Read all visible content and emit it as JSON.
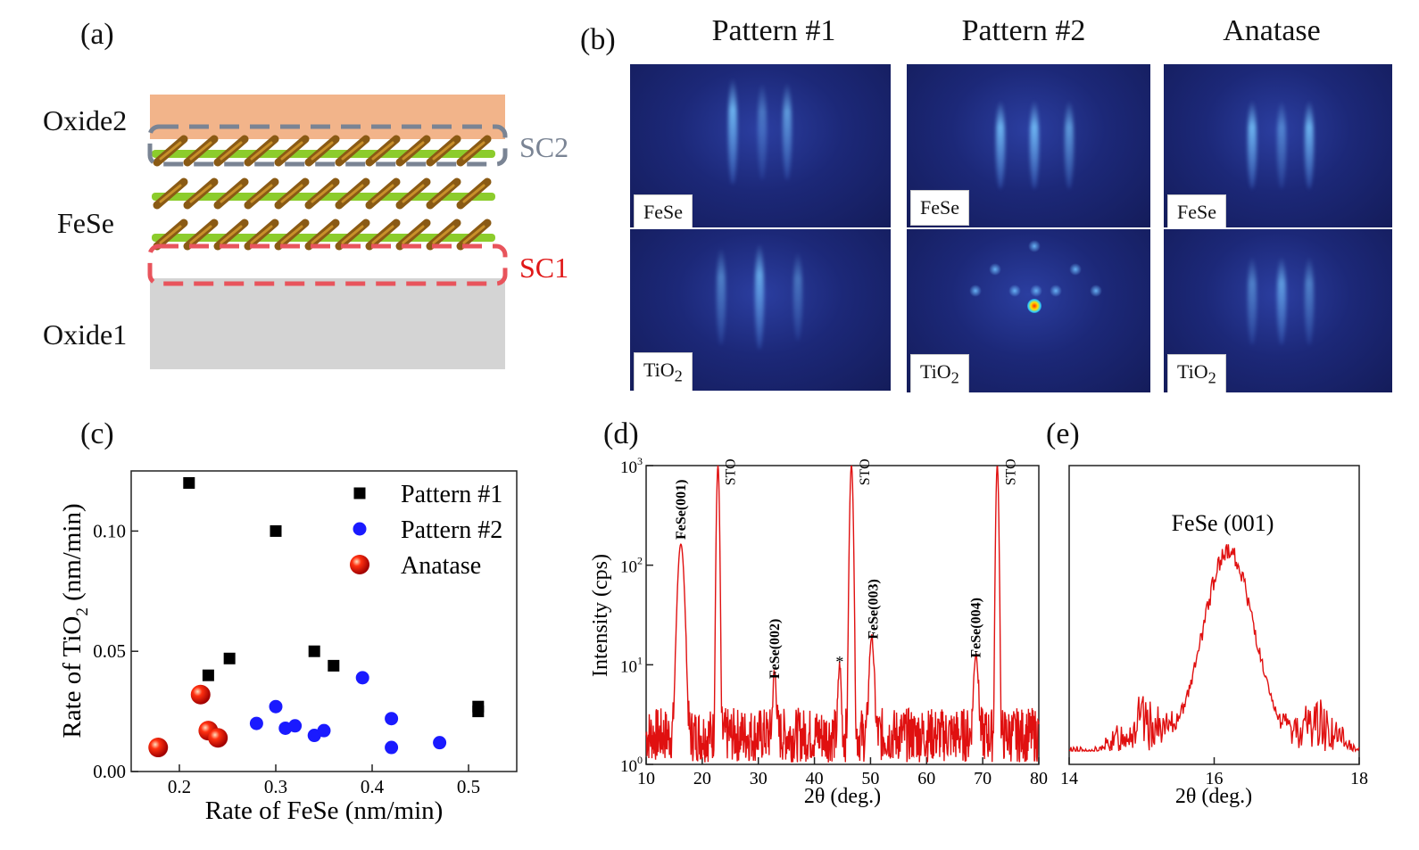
{
  "panel_a": {
    "label": "(a)",
    "layers": {
      "top": "Oxide2",
      "middle": "FeSe",
      "bottom": "Oxide1"
    },
    "boxes": {
      "upper": "SC2",
      "lower": "SC1"
    },
    "colors": {
      "oxide2": "#f2b48a",
      "oxide1": "#d4d4d4",
      "sc2": "#7a8494",
      "sc1": "#e8545c"
    }
  },
  "panel_b": {
    "label": "(b)",
    "columns": [
      {
        "title": "Pattern #1",
        "top_label": "FeSe",
        "bottom_label_base": "TiO",
        "bottom_label_sub": "2"
      },
      {
        "title": "Pattern #2",
        "top_label": "FeSe",
        "bottom_label_base": "TiO",
        "bottom_label_sub": "2"
      },
      {
        "title": "Anatase",
        "top_label": "FeSe",
        "bottom_label_base": "TiO",
        "bottom_label_sub": "2"
      }
    ]
  },
  "panel_c": {
    "label": "(c)"
  },
  "panel_d": {
    "label": "(d)"
  },
  "panel_e": {
    "label": "(e)"
  },
  "chart_data": [
    {
      "id": "c",
      "type": "scatter",
      "xlabel": "Rate of FeSe (nm/min)",
      "ylabel_base": "Rate of TiO",
      "ylabel_sub": "2",
      "ylabel_tail": " (nm/min)",
      "xlim": [
        0.15,
        0.55
      ],
      "ylim": [
        0.0,
        0.125
      ],
      "xticks": [
        "0.2",
        "0.3",
        "0.4",
        "0.5"
      ],
      "xtick_values": [
        0.2,
        0.3,
        0.4,
        0.5
      ],
      "yticks": [
        "0.00",
        "0.05",
        "0.10"
      ],
      "ytick_values": [
        0.0,
        0.05,
        0.1
      ],
      "series": [
        {
          "name": "Pattern #1",
          "marker": "square",
          "color": "#000000",
          "x": [
            0.21,
            0.3,
            0.23,
            0.252,
            0.34,
            0.36,
            0.51,
            0.51
          ],
          "y": [
            0.12,
            0.1,
            0.04,
            0.047,
            0.05,
            0.044,
            0.027,
            0.025
          ]
        },
        {
          "name": "Pattern #2",
          "marker": "circle",
          "color": "#1a1aff",
          "x": [
            0.28,
            0.3,
            0.31,
            0.32,
            0.34,
            0.35,
            0.39,
            0.42,
            0.42,
            0.47
          ],
          "y": [
            0.02,
            0.027,
            0.018,
            0.019,
            0.015,
            0.017,
            0.039,
            0.022,
            0.01,
            0.012
          ]
        },
        {
          "name": "Anatase",
          "marker": "sphere",
          "color": "#e01010",
          "x": [
            0.178,
            0.222,
            0.23,
            0.24
          ],
          "y": [
            0.01,
            0.032,
            0.017,
            0.014
          ]
        }
      ]
    },
    {
      "id": "d",
      "type": "line",
      "xlabel": "2θ (deg.)",
      "ylabel": "Intensity (cps)",
      "yscale": "log",
      "xlim": [
        10,
        80
      ],
      "ylim": [
        1,
        1000
      ],
      "xticks": [
        "10",
        "20",
        "30",
        "40",
        "50",
        "60",
        "70",
        "80"
      ],
      "xtick_values": [
        10,
        20,
        30,
        40,
        50,
        60,
        70,
        80
      ],
      "ytick_base": "10",
      "ytick_exps": [
        "0",
        "1",
        "2",
        "3"
      ],
      "color": "#e01010",
      "peaks": [
        {
          "x": 16.2,
          "y": 160,
          "width": 0.6
        },
        {
          "x": 22.8,
          "y": 1000,
          "width": 0.25
        },
        {
          "x": 32.9,
          "y": 6.5,
          "width": 0.35
        },
        {
          "x": 44.5,
          "y": 8,
          "width": 0.3
        },
        {
          "x": 46.6,
          "y": 1000,
          "width": 0.3
        },
        {
          "x": 50.2,
          "y": 17,
          "width": 0.45
        },
        {
          "x": 68.8,
          "y": 11,
          "width": 0.45
        },
        {
          "x": 72.6,
          "y": 1000,
          "width": 0.25
        }
      ],
      "annotations": [
        {
          "text": "FeSe(001)",
          "x": 16.2,
          "y": 200,
          "bold": true
        },
        {
          "text": "STO",
          "x": 25.0,
          "y": 700,
          "bold": false
        },
        {
          "text": "FeSe(002)",
          "x": 32.9,
          "y": 8,
          "bold": true
        },
        {
          "text": "*",
          "x": 44.5,
          "y": 9.5,
          "bold": false
        },
        {
          "text": "STO",
          "x": 49.0,
          "y": 700,
          "bold": false
        },
        {
          "text": "FeSe(003)",
          "x": 50.5,
          "y": 20,
          "bold": true
        },
        {
          "text": "FeSe(004)",
          "x": 68.8,
          "y": 13,
          "bold": true
        },
        {
          "text": "STO",
          "x": 75.0,
          "y": 700,
          "bold": false
        }
      ]
    },
    {
      "id": "e",
      "type": "line",
      "title": "FeSe (001)",
      "xlabel": "2θ (deg.)",
      "xlim": [
        14,
        18
      ],
      "xticks": [
        "14",
        "16",
        "18"
      ],
      "xtick_values": [
        14,
        16,
        18
      ],
      "color": "#e01010",
      "peak": {
        "center": 16.2,
        "sigma": 0.5,
        "height": 1.0
      }
    }
  ]
}
